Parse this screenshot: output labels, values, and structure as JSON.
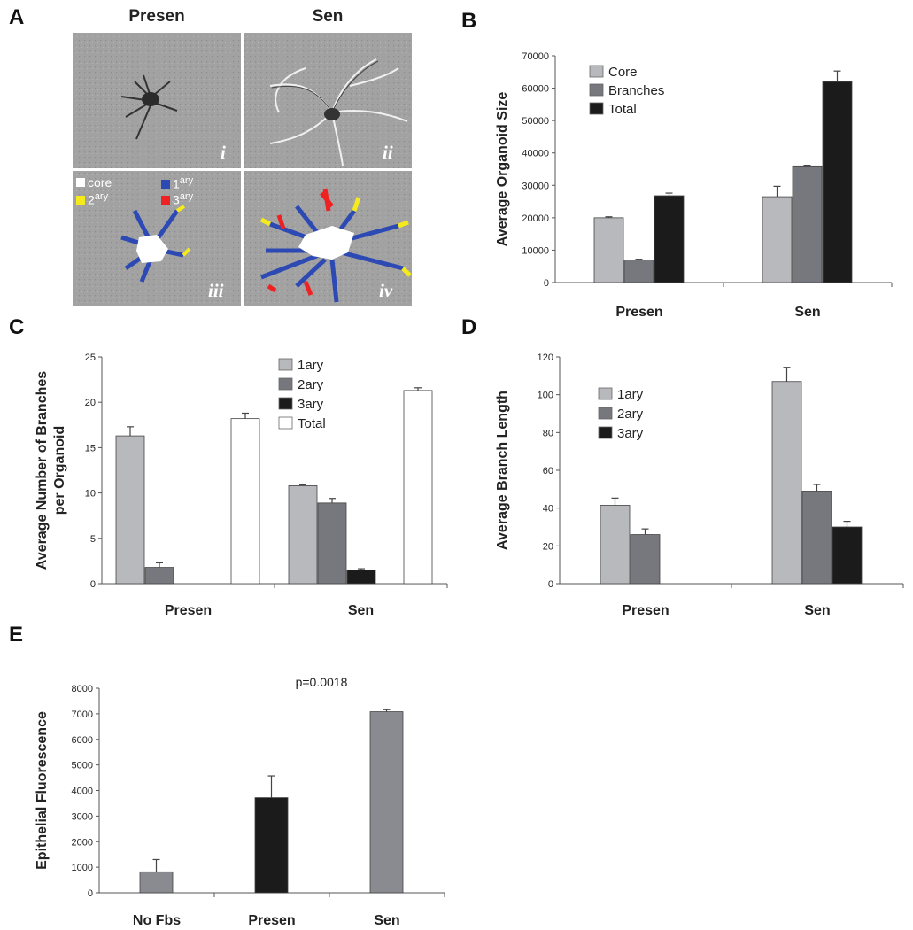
{
  "panels": {
    "a": {
      "letter": "A",
      "col_titles": [
        "Presen",
        "Sen"
      ],
      "images": [
        "i",
        "ii",
        "iii",
        "iv"
      ],
      "legend": [
        {
          "label": "core",
          "sup": "",
          "color": "#ffffff"
        },
        {
          "label": "1",
          "sup": "ary",
          "color": "#2d49b3"
        },
        {
          "label": "2",
          "sup": "ary",
          "color": "#f4ea1c"
        },
        {
          "label": "3",
          "sup": "ary",
          "color": "#ee2222"
        }
      ]
    },
    "b": {
      "letter": "B"
    },
    "c": {
      "letter": "C"
    },
    "d": {
      "letter": "D"
    },
    "e": {
      "letter": "E"
    }
  },
  "chart_data": [
    {
      "id": "b",
      "type": "bar",
      "categories": [
        "Presen",
        "Sen"
      ],
      "series": [
        {
          "name": "Core",
          "color": "#b8b9bd",
          "values": [
            20000,
            26500
          ],
          "errors": [
            300,
            3200
          ]
        },
        {
          "name": "Branches",
          "color": "#77787d",
          "values": [
            7000,
            36000
          ],
          "errors": [
            200,
            200
          ]
        },
        {
          "name": "Total",
          "color": "#1b1b1b",
          "values": [
            26800,
            62000
          ],
          "errors": [
            800,
            3300
          ]
        }
      ],
      "ylabel": "Average Organoid Size",
      "ylim": [
        0,
        70000
      ],
      "yticks": [
        0,
        10000,
        20000,
        30000,
        40000,
        50000,
        60000,
        70000
      ],
      "legend_position": "top-left",
      "grid": false
    },
    {
      "id": "c",
      "type": "bar",
      "categories": [
        "Presen",
        "Sen"
      ],
      "series": [
        {
          "name": "1ary",
          "color": "#b8b9bd",
          "values": [
            16.3,
            10.8
          ],
          "errors": [
            1.0,
            0.1
          ]
        },
        {
          "name": "2ary",
          "color": "#77787d",
          "values": [
            1.8,
            8.9
          ],
          "errors": [
            0.5,
            0.5
          ]
        },
        {
          "name": "3ary",
          "color": "#1b1b1b",
          "values": [
            0,
            1.5
          ],
          "errors": [
            0,
            0.15
          ]
        },
        {
          "name": "Total",
          "color": "#ffffff",
          "values": [
            18.2,
            21.3
          ],
          "errors": [
            0.6,
            0.3
          ]
        }
      ],
      "ylabel": "Average Number of Branches per Organoid",
      "ylabel_lines": [
        "Average Number of Branches",
        "per Organoid"
      ],
      "ylim": [
        0,
        25
      ],
      "yticks": [
        0,
        5,
        10,
        15,
        20,
        25
      ],
      "legend_position": "top-right",
      "grid": false
    },
    {
      "id": "d",
      "type": "bar",
      "categories": [
        "Presen",
        "Sen"
      ],
      "series": [
        {
          "name": "1ary",
          "color": "#b8b9bd",
          "values": [
            41.5,
            107
          ],
          "errors": [
            3.8,
            7.5
          ]
        },
        {
          "name": "2ary",
          "color": "#77787d",
          "values": [
            26,
            49
          ],
          "errors": [
            3,
            3.5
          ]
        },
        {
          "name": "3ary",
          "color": "#1b1b1b",
          "values": [
            0,
            30
          ],
          "errors": [
            0,
            3
          ]
        }
      ],
      "ylabel": "Average Branch Length",
      "ylim": [
        0,
        120
      ],
      "yticks": [
        0,
        20,
        40,
        60,
        80,
        100,
        120
      ],
      "legend_position": "top-left",
      "grid": false
    },
    {
      "id": "e",
      "type": "bar",
      "categories": [
        "No Fbs",
        "Presen",
        "Sen"
      ],
      "series": [
        {
          "name": "",
          "colors": [
            "#8a8b90",
            "#1b1b1b",
            "#8a8b90"
          ],
          "values": [
            820,
            3720,
            7080
          ],
          "errors": [
            480,
            850,
            80
          ]
        }
      ],
      "ylabel": "Epithelial Fluorescence",
      "ylim": [
        0,
        8000
      ],
      "yticks": [
        0,
        1000,
        2000,
        3000,
        4000,
        5000,
        6000,
        7000,
        8000
      ],
      "annotation": "p=0.0018",
      "grid": false
    }
  ]
}
